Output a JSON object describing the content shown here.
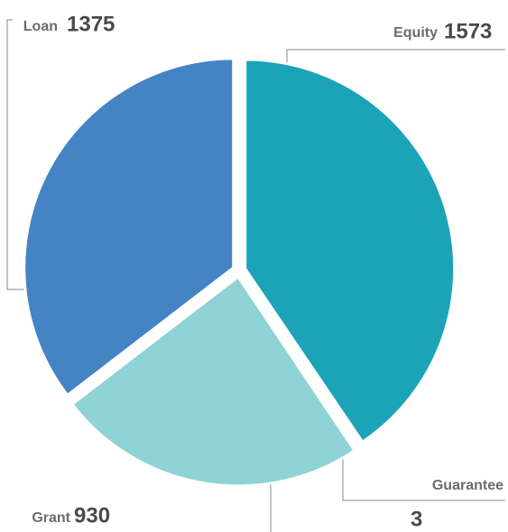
{
  "chart_data": {
    "type": "pie",
    "categories": [
      "Equity",
      "Guarantee",
      "Grant",
      "Loan"
    ],
    "values": [
      1573,
      3,
      930,
      1375
    ],
    "colors": [
      "#1ba3b8",
      "#1f5f9e",
      "#8fd3d6",
      "#4484c4"
    ]
  }
}
